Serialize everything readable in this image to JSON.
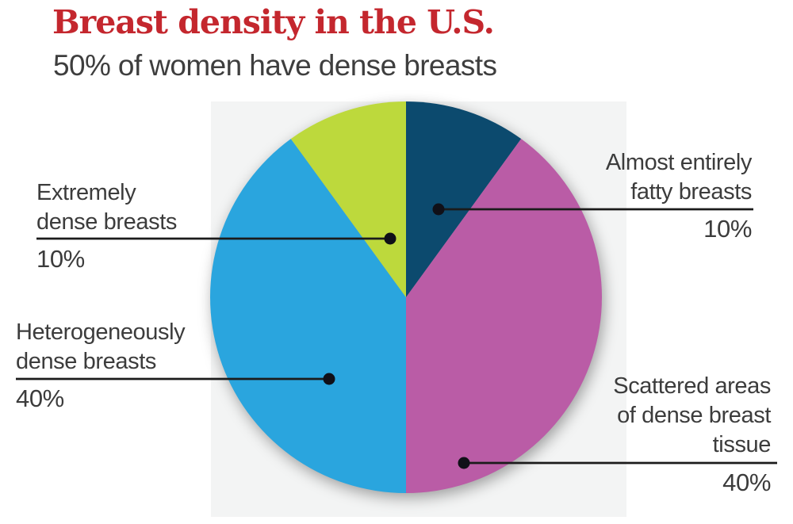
{
  "header": {
    "title": "Breast density in the U.S.",
    "subtitle": "50% of women have dense breasts",
    "title_color": "#c4272e"
  },
  "chart_data": {
    "type": "pie",
    "title": "Breast density in the U.S.",
    "subtitle": "50% of women have dense breasts",
    "start_angle_deg": 0,
    "direction": "clockwise",
    "background_color": "#f3f4f4",
    "slices": [
      {
        "id": "fatty",
        "label": "Almost entirely fatty breasts",
        "value_pct": 10,
        "display_value": "10%",
        "color": "#0c4a6e"
      },
      {
        "id": "scattered",
        "label": "Scattered areas of dense breast tissue",
        "value_pct": 40,
        "display_value": "40%",
        "color": "#ba5ca6"
      },
      {
        "id": "heterogeneous",
        "label": "Heterogeneously dense breasts",
        "value_pct": 40,
        "display_value": "40%",
        "color": "#2aa5de"
      },
      {
        "id": "extremely-dense",
        "label": "Extremely dense breasts",
        "value_pct": 10,
        "display_value": "10%",
        "color": "#bdd93c"
      }
    ],
    "legend_position": "callouts",
    "grid": false
  },
  "callouts": [
    {
      "lines": [
        "Almost entirely",
        "fatty breasts"
      ]
    },
    {
      "lines": [
        "Extremely",
        "dense breasts"
      ]
    },
    {
      "lines": [
        "Heterogeneously",
        "dense breasts"
      ]
    },
    {
      "lines": [
        "Scattered areas",
        "of dense breast",
        "tissue"
      ]
    }
  ],
  "colors": {
    "leader_line": "#1b1b1b",
    "leader_dot": "#101018",
    "label_text": "#3c3c3c"
  }
}
